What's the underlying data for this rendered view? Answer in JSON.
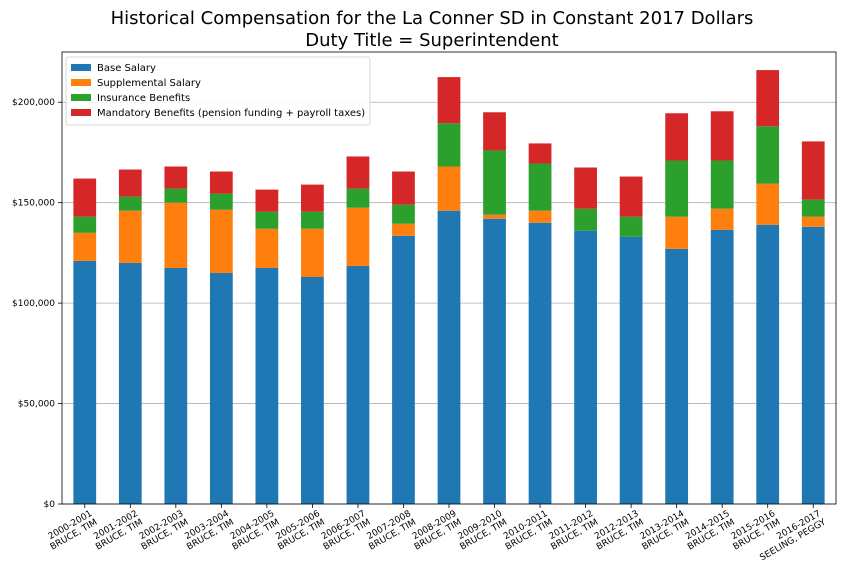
{
  "chart_data": {
    "type": "bar",
    "stacked": true,
    "title": "Historical Compensation for the La Conner SD in Constant 2017 Dollars",
    "subtitle": "Duty Title = Superintendent",
    "xlabel": "",
    "ylabel": "",
    "ylim": [
      0,
      225000
    ],
    "yticks": [
      0,
      50000,
      100000,
      150000,
      200000
    ],
    "ytick_labels": [
      "$0",
      "$50,000",
      "$100,000",
      "$150,000",
      "$200,000"
    ],
    "grid": "horizontal",
    "legend_position": "top-left",
    "categories": [
      [
        "2000-2001",
        "BRUCE, TIM"
      ],
      [
        "2001-2002",
        "BRUCE, TIM"
      ],
      [
        "2002-2003",
        "BRUCE, TIM"
      ],
      [
        "2003-2004",
        "BRUCE, TIM"
      ],
      [
        "2004-2005",
        "BRUCE, TIM"
      ],
      [
        "2005-2006",
        "BRUCE, TIM"
      ],
      [
        "2006-2007",
        "BRUCE, TIM"
      ],
      [
        "2007-2008",
        "BRUCE, TIM"
      ],
      [
        "2008-2009",
        "BRUCE, TIM"
      ],
      [
        "2009-2010",
        "BRUCE, TIM"
      ],
      [
        "2010-2011",
        "BRUCE, TIM"
      ],
      [
        "2011-2012",
        "BRUCE, TIM"
      ],
      [
        "2012-2013",
        "BRUCE, TIM"
      ],
      [
        "2013-2014",
        "BRUCE, TIM"
      ],
      [
        "2014-2015",
        "BRUCE, TIM"
      ],
      [
        "2015-2016",
        "BRUCE, TIM"
      ],
      [
        "2016-2017",
        "SEELING, PEGGY"
      ]
    ],
    "series": [
      {
        "name": "Base Salary",
        "color": "#1f77b4",
        "values": [
          121000,
          120000,
          117500,
          115000,
          117500,
          113000,
          118500,
          133500,
          146000,
          142000,
          140000,
          136000,
          133000,
          127000,
          136500,
          139000,
          138000
        ]
      },
      {
        "name": "Supplemental Salary",
        "color": "#ff7f0e",
        "values": [
          14000,
          26000,
          32500,
          31500,
          19500,
          24000,
          29000,
          6000,
          22000,
          2000,
          6000,
          0,
          0,
          16000,
          10500,
          20500,
          5000
        ]
      },
      {
        "name": "Insurance Benefits",
        "color": "#2ca02c",
        "values": [
          8000,
          7000,
          7000,
          8000,
          8500,
          8500,
          9500,
          9500,
          21500,
          32000,
          23500,
          11000,
          10000,
          28000,
          24000,
          28500,
          8500
        ]
      },
      {
        "name": "Mandatory Benefits (pension funding + payroll taxes)",
        "color": "#d62728",
        "values": [
          19000,
          13500,
          11000,
          11000,
          11000,
          13500,
          16000,
          16500,
          23000,
          19000,
          10000,
          20500,
          20000,
          23500,
          24500,
          28000,
          29000
        ]
      }
    ]
  }
}
